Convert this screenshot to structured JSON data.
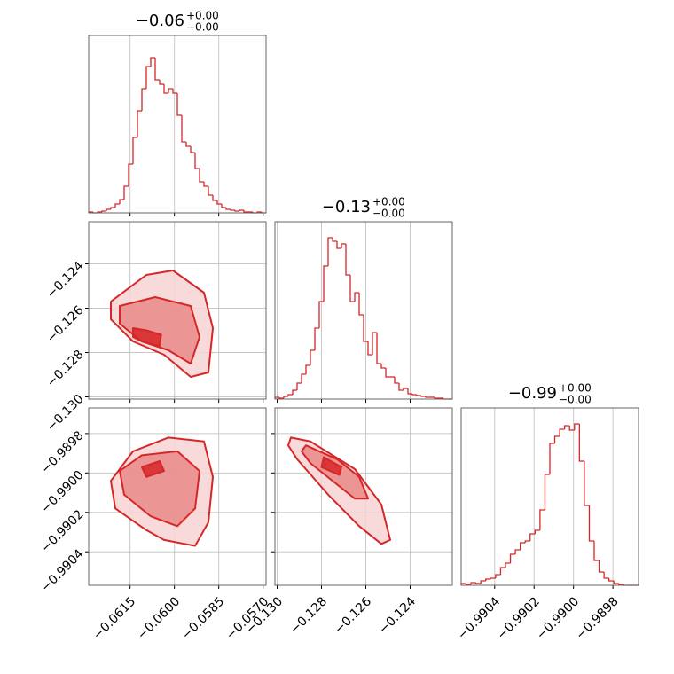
{
  "chart_data": {
    "type": "corner",
    "color": "#d62728",
    "grid": true,
    "hist_ylim": [
      0,
      200
    ],
    "params": [
      {
        "title": "−0.06",
        "title_plus": "+0.00",
        "title_minus": "−0.00",
        "lim": [
          -0.0629,
          -0.0569
        ],
        "ticks": [
          {
            "value": -0.0615,
            "label": "−0.0615"
          },
          {
            "value": -0.06,
            "label": "−0.0600"
          },
          {
            "value": -0.0585,
            "label": "−0.0585"
          },
          {
            "value": -0.057,
            "label": "−0.0570"
          }
        ],
        "bins": [
          -0.0629,
          -0.06275,
          -0.0626,
          -0.06245,
          -0.0623,
          -0.06215,
          -0.062,
          -0.06185,
          -0.0617,
          -0.06155,
          -0.0614,
          -0.06125,
          -0.0611,
          -0.06095,
          -0.0608,
          -0.06065,
          -0.0605,
          -0.06035,
          -0.0602,
          -0.06005,
          -0.0599,
          -0.05975,
          -0.0596,
          -0.05945,
          -0.0593,
          -0.05915,
          -0.059,
          -0.05885,
          -0.0587,
          -0.05855,
          -0.0584,
          -0.05825,
          -0.0581,
          -0.05795,
          -0.0578,
          -0.05765,
          -0.0575,
          -0.05735,
          -0.0572,
          -0.05705,
          -0.0569
        ],
        "counts": [
          1,
          0,
          1,
          2,
          4,
          6,
          10,
          15,
          30,
          55,
          85,
          115,
          140,
          165,
          175,
          150,
          145,
          135,
          140,
          135,
          110,
          80,
          75,
          68,
          50,
          35,
          30,
          20,
          14,
          10,
          6,
          4,
          3,
          2,
          3,
          1,
          1,
          0,
          1,
          0
        ]
      },
      {
        "title": "−0.13",
        "title_plus": "+0.00",
        "title_minus": "−0.00",
        "lim": [
          -0.1301,
          -0.1221
        ],
        "ticks": [
          {
            "value": -0.13,
            "label": "−0.130"
          },
          {
            "value": -0.128,
            "label": "−0.128"
          },
          {
            "value": -0.126,
            "label": "−0.126"
          },
          {
            "value": -0.124,
            "label": "−0.124"
          }
        ],
        "bins": [
          -0.1301,
          -0.1299,
          -0.1297,
          -0.1295,
          -0.1293,
          -0.1291,
          -0.1289,
          -0.1287,
          -0.1285,
          -0.1283,
          -0.1281,
          -0.1279,
          -0.1277,
          -0.1275,
          -0.1273,
          -0.1271,
          -0.1269,
          -0.1267,
          -0.1265,
          -0.1263,
          -0.1261,
          -0.1259,
          -0.1257,
          -0.1255,
          -0.1253,
          -0.1251,
          -0.1249,
          -0.1247,
          -0.1245,
          -0.1243,
          -0.1241,
          -0.1239,
          -0.1237,
          -0.1235,
          -0.1233,
          -0.1231,
          -0.1229,
          -0.1227,
          -0.1225,
          -0.1223,
          -0.1221
        ],
        "counts": [
          2,
          1,
          3,
          5,
          10,
          18,
          28,
          38,
          55,
          80,
          110,
          150,
          182,
          178,
          170,
          175,
          140,
          110,
          120,
          95,
          65,
          50,
          75,
          40,
          35,
          25,
          25,
          18,
          10,
          12,
          6,
          5,
          4,
          3,
          2,
          2,
          1,
          1,
          0,
          0
        ]
      },
      {
        "title": "−0.99",
        "title_plus": "+0.00",
        "title_minus": "−0.00",
        "lim": [
          -0.99057,
          -0.98967
        ],
        "ticks": [
          {
            "value": -0.9904,
            "label": "−0.9904"
          },
          {
            "value": -0.9902,
            "label": "−0.9902"
          },
          {
            "value": -0.99,
            "label": "−0.9900"
          },
          {
            "value": -0.9898,
            "label": "−0.9898"
          }
        ],
        "bins": [
          -0.99057,
          -0.990545,
          -0.99052,
          -0.990495,
          -0.99047,
          -0.990445,
          -0.99042,
          -0.990395,
          -0.99037,
          -0.990345,
          -0.99032,
          -0.990295,
          -0.99027,
          -0.990245,
          -0.99022,
          -0.990195,
          -0.99017,
          -0.990145,
          -0.99012,
          -0.990095,
          -0.99007,
          -0.990045,
          -0.99002,
          -0.989995,
          -0.98997,
          -0.989945,
          -0.98992,
          -0.989895,
          -0.98987,
          -0.989845,
          -0.98982,
          -0.989795,
          -0.98977,
          -0.989745,
          -0.98972,
          -0.989695,
          -0.98967
        ],
        "counts": [
          2,
          1,
          3,
          2,
          5,
          7,
          8,
          12,
          20,
          25,
          35,
          40,
          48,
          50,
          58,
          62,
          85,
          125,
          160,
          168,
          176,
          180,
          175,
          182,
          140,
          90,
          50,
          28,
          15,
          8,
          5,
          2,
          1,
          0,
          0,
          0
        ]
      }
    ],
    "pairs": [
      {
        "contours": [
          {
            "x": [
              -0.06215,
              -0.06095,
              -0.06005,
              -0.059,
              -0.0587,
              -0.05885,
              -0.05945,
              -0.06035,
              -0.0614,
              -0.06215
            ],
            "y": [
              -0.1257,
              -0.1245,
              -0.1243,
              -0.1253,
              -0.1269,
              -0.1289,
              -0.1291,
              -0.1281,
              -0.1275,
              -0.1265
            ]
          },
          {
            "x": [
              -0.06185,
              -0.06065,
              -0.05945,
              -0.05915,
              -0.05945,
              -0.0602,
              -0.0611,
              -0.06185
            ],
            "y": [
              -0.1259,
              -0.1255,
              -0.1259,
              -0.1273,
              -0.1285,
              -0.1279,
              -0.1275,
              -0.1267
            ]
          },
          {
            "x": [
              -0.0614,
              -0.06095,
              -0.06045,
              -0.0605,
              -0.0611,
              -0.0614
            ],
            "y": [
              -0.1269,
              -0.127,
              -0.1272,
              -0.1277,
              -0.1275,
              -0.1273
            ]
          }
        ]
      },
      {
        "contours": [
          {
            "x": [
              -0.06215,
              -0.0614,
              -0.0602,
              -0.059,
              -0.0587,
              -0.05885,
              -0.0593,
              -0.06035,
              -0.06095,
              -0.062
            ],
            "y": [
              -0.99004,
              -0.98989,
              -0.98982,
              -0.98984,
              -0.99002,
              -0.99025,
              -0.99037,
              -0.99034,
              -0.99029,
              -0.99018
            ]
          },
          {
            "x": [
              -0.06185,
              -0.0611,
              -0.0599,
              -0.05915,
              -0.0593,
              -0.0599,
              -0.0608,
              -0.0617
            ],
            "y": [
              -0.98999,
              -0.98991,
              -0.98989,
              -0.98999,
              -0.99018,
              -0.99027,
              -0.99022,
              -0.99011
            ]
          },
          {
            "x": [
              -0.0611,
              -0.0605,
              -0.06035,
              -0.06095
            ],
            "y": [
              -0.98997,
              -0.98994,
              -0.98999,
              -0.99002
            ]
          }
        ]
      },
      {
        "contours": [
          {
            "x": [
              -0.12938,
              -0.1285,
              -0.1265,
              -0.1253,
              -0.1249,
              -0.1253,
              -0.1263,
              -0.1277,
              -0.1291,
              -0.1295
            ],
            "y": [
              -0.98982,
              -0.98984,
              -0.98998,
              -0.99016,
              -0.99034,
              -0.99036,
              -0.99027,
              -0.99011,
              -0.98993,
              -0.98986
            ]
          },
          {
            "x": [
              -0.1287,
              -0.1273,
              -0.1263,
              -0.1259,
              -0.1265,
              -0.1275,
              -0.1285,
              -0.1289
            ],
            "y": [
              -0.98986,
              -0.98993,
              -0.99002,
              -0.99013,
              -0.99013,
              -0.99004,
              -0.98995,
              -0.98989
            ]
          },
          {
            "x": [
              -0.1279,
              -0.1271,
              -0.1272,
              -0.128
            ],
            "y": [
              -0.98992,
              -0.98997,
              -0.99001,
              -0.98997
            ]
          }
        ]
      }
    ]
  }
}
